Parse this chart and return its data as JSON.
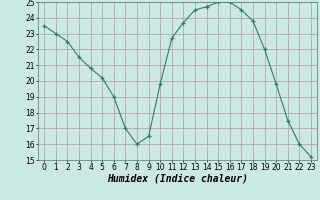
{
  "x": [
    0,
    1,
    2,
    3,
    4,
    5,
    6,
    7,
    8,
    9,
    10,
    11,
    12,
    13,
    14,
    15,
    16,
    17,
    18,
    19,
    20,
    21,
    22,
    23
  ],
  "y": [
    23.5,
    23.0,
    22.5,
    21.5,
    20.8,
    20.2,
    19.0,
    17.0,
    16.0,
    16.5,
    19.8,
    22.7,
    23.7,
    24.5,
    24.7,
    25.0,
    25.0,
    24.5,
    23.8,
    22.0,
    19.8,
    17.5,
    16.0,
    15.2
  ],
  "line_color": "#2e7d6e",
  "marker": "+",
  "marker_size": 3,
  "bg_color": "#cce8e4",
  "grid_color_major": "#b89898",
  "grid_color_minor": "#d4bcbc",
  "xlim": [
    -0.5,
    23.5
  ],
  "ylim": [
    15,
    25
  ],
  "yticks": [
    15,
    16,
    17,
    18,
    19,
    20,
    21,
    22,
    23,
    24,
    25
  ],
  "xticks": [
    0,
    1,
    2,
    3,
    4,
    5,
    6,
    7,
    8,
    9,
    10,
    11,
    12,
    13,
    14,
    15,
    16,
    17,
    18,
    19,
    20,
    21,
    22,
    23
  ],
  "xlabel": "Humidex (Indice chaleur)",
  "xlabel_fontsize": 7,
  "tick_fontsize": 5.5
}
